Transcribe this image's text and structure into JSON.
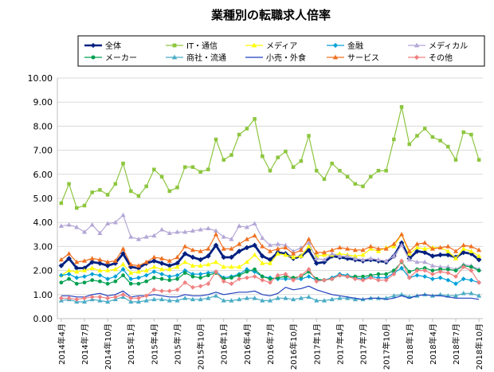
{
  "chart_data": {
    "type": "line",
    "title": "業種別の転職求人倍率",
    "xlabel": "",
    "ylabel": "",
    "ylim": [
      0,
      10
    ],
    "yticks": [
      "0.00",
      "1.00",
      "2.00",
      "3.00",
      "4.00",
      "5.00",
      "6.00",
      "7.00",
      "8.00",
      "9.00",
      "10.00"
    ],
    "grid": true,
    "legend_position": "top",
    "x": [
      "2014年4月",
      "2014年5月",
      "2014年6月",
      "2014年7月",
      "2014年8月",
      "2014年9月",
      "2014年10月",
      "2014年11月",
      "2014年12月",
      "2015年1月",
      "2015年2月",
      "2015年3月",
      "2015年4月",
      "2015年5月",
      "2015年6月",
      "2015年7月",
      "2015年8月",
      "2015年9月",
      "2015年10月",
      "2015年11月",
      "2015年12月",
      "2016年1月",
      "2016年2月",
      "2016年3月",
      "2016年4月",
      "2016年5月",
      "2016年6月",
      "2016年7月",
      "2016年8月",
      "2016年9月",
      "2016年10月",
      "2016年11月",
      "2016年12月",
      "2017年1月",
      "2017年2月",
      "2017年3月",
      "2017年4月",
      "2017年5月",
      "2017年6月",
      "2017年7月",
      "2017年8月",
      "2017年9月",
      "2017年10月",
      "2017年11月",
      "2017年12月",
      "2018年1月",
      "2018年2月",
      "2018年3月",
      "2018年4月",
      "2018年5月",
      "2018年6月",
      "2018年7月",
      "2018年8月",
      "2018年9月",
      "2018年10月"
    ],
    "xtick_labels": [
      "2014年4月",
      "2014年7月",
      "2014年10月",
      "2015年1月",
      "2015年4月",
      "2015年7月",
      "2015年10月",
      "2016年1月",
      "2016年4月",
      "2016年7月",
      "2016年10月",
      "2017年1月",
      "2017年4月",
      "2017年7月",
      "2017年10月",
      "2018年1月",
      "2018年4月",
      "2018年7月",
      "2018年10月"
    ],
    "series": [
      {
        "name": "全体",
        "color": "#002080",
        "marker": "diamond",
        "width": 2.8,
        "values": [
          2.2,
          2.5,
          2.1,
          2.1,
          2.35,
          2.3,
          2.2,
          2.3,
          2.7,
          2.15,
          2.1,
          2.3,
          2.4,
          2.3,
          2.2,
          2.3,
          2.7,
          2.55,
          2.45,
          2.6,
          3.05,
          2.55,
          2.55,
          2.8,
          2.95,
          3.05,
          2.6,
          2.45,
          2.75,
          2.7,
          2.5,
          2.6,
          2.85,
          2.3,
          2.35,
          2.6,
          2.55,
          2.5,
          2.45,
          2.4,
          2.45,
          2.4,
          2.35,
          2.6,
          3.15,
          2.5,
          2.8,
          2.75,
          2.6,
          2.65,
          2.65,
          2.55,
          2.75,
          2.7,
          2.45
        ]
      },
      {
        "name": "IT・通信",
        "color": "#8dc63f",
        "marker": "square",
        "width": 1.2,
        "values": [
          4.8,
          5.6,
          4.6,
          4.7,
          5.25,
          5.35,
          5.15,
          5.6,
          6.45,
          5.3,
          5.1,
          5.5,
          6.2,
          5.9,
          5.3,
          5.45,
          6.3,
          6.3,
          6.1,
          6.2,
          7.45,
          6.6,
          6.8,
          7.65,
          7.9,
          8.3,
          6.75,
          6.15,
          6.7,
          6.95,
          6.3,
          6.55,
          7.6,
          6.15,
          5.8,
          6.45,
          6.15,
          5.9,
          5.6,
          5.5,
          5.9,
          6.15,
          6.15,
          7.45,
          8.8,
          7.25,
          7.6,
          7.9,
          7.55,
          7.4,
          7.15,
          6.6,
          7.75,
          7.65,
          6.6
        ]
      },
      {
        "name": "メディア",
        "color": "#ffff00",
        "marker": "triangle",
        "width": 1.2,
        "values": [
          1.8,
          2.0,
          1.95,
          2.0,
          2.1,
          2.0,
          2.0,
          2.05,
          2.25,
          1.9,
          1.95,
          2.0,
          2.15,
          2.05,
          2.05,
          2.15,
          2.35,
          2.2,
          2.2,
          2.25,
          2.35,
          2.15,
          2.15,
          2.15,
          2.35,
          2.65,
          2.3,
          2.3,
          2.7,
          2.65,
          2.55,
          2.6,
          3.0,
          2.6,
          2.65,
          2.65,
          2.7,
          2.65,
          2.6,
          2.65,
          2.9,
          2.8,
          2.95,
          3.0,
          3.5,
          2.7,
          2.95,
          2.9,
          2.95,
          2.95,
          2.8,
          2.5,
          2.9,
          2.8,
          2.6
        ]
      },
      {
        "name": "金融",
        "color": "#00a0d8",
        "marker": "diamond",
        "width": 1.2,
        "values": [
          1.8,
          1.85,
          1.7,
          1.75,
          1.85,
          1.8,
          1.65,
          1.75,
          2.05,
          1.65,
          1.7,
          1.8,
          1.95,
          1.85,
          1.75,
          1.8,
          2.0,
          1.85,
          1.85,
          1.9,
          1.95,
          1.7,
          1.75,
          1.85,
          2.05,
          1.95,
          1.75,
          1.7,
          1.65,
          1.65,
          1.65,
          1.65,
          1.75,
          1.6,
          1.6,
          1.7,
          1.85,
          1.8,
          1.7,
          1.65,
          1.75,
          1.7,
          1.7,
          1.9,
          2.1,
          1.7,
          1.8,
          1.75,
          1.65,
          1.7,
          1.6,
          1.45,
          1.65,
          1.6,
          1.5
        ]
      },
      {
        "name": "メディカル",
        "color": "#b4a7d6",
        "marker": "triangle",
        "width": 1.2,
        "values": [
          3.85,
          3.9,
          3.8,
          3.6,
          3.9,
          3.55,
          3.95,
          4.0,
          4.3,
          3.4,
          3.3,
          3.4,
          3.45,
          3.7,
          3.55,
          3.6,
          3.6,
          3.65,
          3.7,
          3.75,
          3.65,
          3.4,
          3.3,
          3.85,
          3.8,
          3.95,
          3.35,
          3.05,
          3.1,
          3.05,
          2.8,
          2.95,
          3.15,
          2.5,
          2.45,
          2.7,
          2.6,
          2.6,
          2.5,
          2.45,
          2.5,
          2.45,
          2.4,
          2.6,
          3.05,
          2.45,
          2.35,
          2.35,
          2.2,
          2.15,
          2.15,
          2.05,
          2.25,
          2.2,
          2.05
        ]
      },
      {
        "name": "メーカー",
        "color": "#00a050",
        "marker": "circle",
        "width": 1.2,
        "values": [
          1.5,
          1.65,
          1.45,
          1.5,
          1.6,
          1.55,
          1.45,
          1.55,
          1.8,
          1.45,
          1.45,
          1.55,
          1.7,
          1.65,
          1.6,
          1.65,
          1.9,
          1.75,
          1.7,
          1.8,
          1.9,
          1.65,
          1.7,
          1.8,
          1.95,
          2.05,
          1.75,
          1.65,
          1.7,
          1.75,
          1.7,
          1.75,
          1.95,
          1.65,
          1.6,
          1.65,
          1.8,
          1.75,
          1.75,
          1.75,
          1.8,
          1.85,
          1.85,
          2.0,
          2.35,
          1.95,
          2.05,
          2.1,
          2.0,
          2.05,
          2.05,
          2.0,
          2.2,
          2.15,
          2.0
        ]
      },
      {
        "name": "商社・流通",
        "color": "#4bacc6",
        "marker": "triangle",
        "width": 1.2,
        "values": [
          0.75,
          0.8,
          0.7,
          0.7,
          0.8,
          0.75,
          0.7,
          0.8,
          0.9,
          0.7,
          0.7,
          0.75,
          0.8,
          0.8,
          0.75,
          0.75,
          0.85,
          0.8,
          0.8,
          0.85,
          0.95,
          0.75,
          0.75,
          0.8,
          0.85,
          0.85,
          0.75,
          0.75,
          0.85,
          0.85,
          0.8,
          0.85,
          0.9,
          0.75,
          0.75,
          0.8,
          0.85,
          0.85,
          0.8,
          0.8,
          0.85,
          0.85,
          0.85,
          0.95,
          1.0,
          0.9,
          0.95,
          1.0,
          0.95,
          1.0,
          0.95,
          0.95,
          1.05,
          1.05,
          0.95
        ]
      },
      {
        "name": "小売・外食",
        "color": "#1f3fbf",
        "marker": "none",
        "width": 1.2,
        "values": [
          0.95,
          0.95,
          0.9,
          0.9,
          1.0,
          1.05,
          0.95,
          1.0,
          1.15,
          0.9,
          0.95,
          0.95,
          1.0,
          0.95,
          0.9,
          0.9,
          1.0,
          0.95,
          0.95,
          1.0,
          1.1,
          1.0,
          1.05,
          1.1,
          1.1,
          1.15,
          1.0,
          0.95,
          1.05,
          1.3,
          1.2,
          1.25,
          1.35,
          1.2,
          1.1,
          1.0,
          0.95,
          0.9,
          0.85,
          0.8,
          0.85,
          0.85,
          0.8,
          0.85,
          0.95,
          0.85,
          0.95,
          1.0,
          0.95,
          0.95,
          0.9,
          0.85,
          0.85,
          0.85,
          0.8
        ]
      },
      {
        "name": "サービス",
        "color": "#f07020",
        "marker": "triangle",
        "width": 1.2,
        "values": [
          2.45,
          2.7,
          2.35,
          2.4,
          2.5,
          2.45,
          2.35,
          2.4,
          2.9,
          2.25,
          2.2,
          2.35,
          2.55,
          2.5,
          2.4,
          2.55,
          3.0,
          2.85,
          2.8,
          2.9,
          3.5,
          2.9,
          2.9,
          3.1,
          3.3,
          3.45,
          3.0,
          2.8,
          2.9,
          2.95,
          2.7,
          2.85,
          3.3,
          2.75,
          2.75,
          2.85,
          2.95,
          2.9,
          2.85,
          2.85,
          3.0,
          2.9,
          2.9,
          3.1,
          3.5,
          2.8,
          3.1,
          3.15,
          2.9,
          2.95,
          3.0,
          2.8,
          3.05,
          3.0,
          2.85
        ]
      },
      {
        "name": "その他",
        "color": "#f08080",
        "marker": "diamond",
        "width": 1.2,
        "values": [
          0.85,
          0.85,
          0.8,
          0.85,
          0.9,
          0.9,
          0.85,
          0.9,
          1.0,
          0.85,
          0.85,
          0.95,
          1.2,
          1.15,
          1.15,
          1.2,
          1.5,
          1.3,
          1.35,
          1.45,
          1.95,
          1.55,
          1.45,
          1.65,
          1.7,
          1.75,
          1.6,
          1.5,
          1.8,
          1.85,
          1.6,
          1.8,
          2.05,
          1.55,
          1.6,
          1.65,
          1.8,
          1.75,
          1.65,
          1.6,
          1.7,
          1.6,
          1.6,
          1.85,
          2.4,
          1.7,
          2.0,
          2.0,
          1.85,
          1.95,
          1.9,
          1.75,
          2.15,
          2.0,
          1.5
        ]
      }
    ]
  }
}
